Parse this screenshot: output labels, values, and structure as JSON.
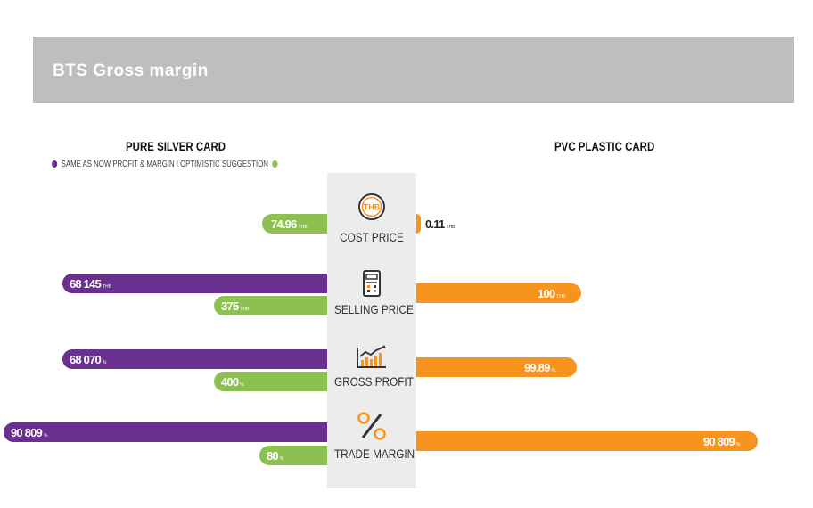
{
  "header": {
    "title": "BTS Gross margin"
  },
  "left_title": "PURE SILVER CARD",
  "right_title": "PVC PLASTIC CARD",
  "legend": {
    "text": "SAME AS NOW PROFIT & MARGIN I OPTIMISTIC SUGGESTION",
    "left_color": "#6a2f8f",
    "right_color": "#8cc152"
  },
  "colors": {
    "purple": "#6a2f8f",
    "green": "#8cc152",
    "orange": "#f7941d"
  },
  "chart_data": {
    "type": "bar",
    "categories": [
      "COST PRICE",
      "SELLING PRICE",
      "GROSS PROFIT",
      "TRADE MARGIN"
    ],
    "series": [
      {
        "name": "SAME AS NOW PROFIT & MARGIN",
        "side": "left",
        "color": "#6a2f8f",
        "values": [
          null,
          68145,
          68070,
          90809
        ],
        "labels": [
          "",
          "68 145",
          "68 070",
          "90 809"
        ],
        "units": [
          "",
          "THB",
          "%",
          "%"
        ]
      },
      {
        "name": "OPTIMISTIC SUGGESTION",
        "side": "left",
        "color": "#8cc152",
        "values": [
          74.96,
          375,
          400,
          80
        ],
        "labels": [
          "74.96",
          "375",
          "400",
          "80"
        ],
        "units": [
          "THB",
          "THB",
          "%",
          "%"
        ]
      },
      {
        "name": "PVC PLASTIC CARD",
        "side": "right",
        "color": "#f7941d",
        "values": [
          0.11,
          100,
          99.89,
          90809
        ],
        "labels": [
          "0.11",
          "100",
          "99.89",
          "90 809"
        ],
        "units": [
          "THB",
          "THB",
          "%",
          "%"
        ]
      }
    ]
  },
  "icons": [
    "thb-coin-icon",
    "calculator-icon",
    "growth-chart-icon",
    "percent-icon"
  ]
}
